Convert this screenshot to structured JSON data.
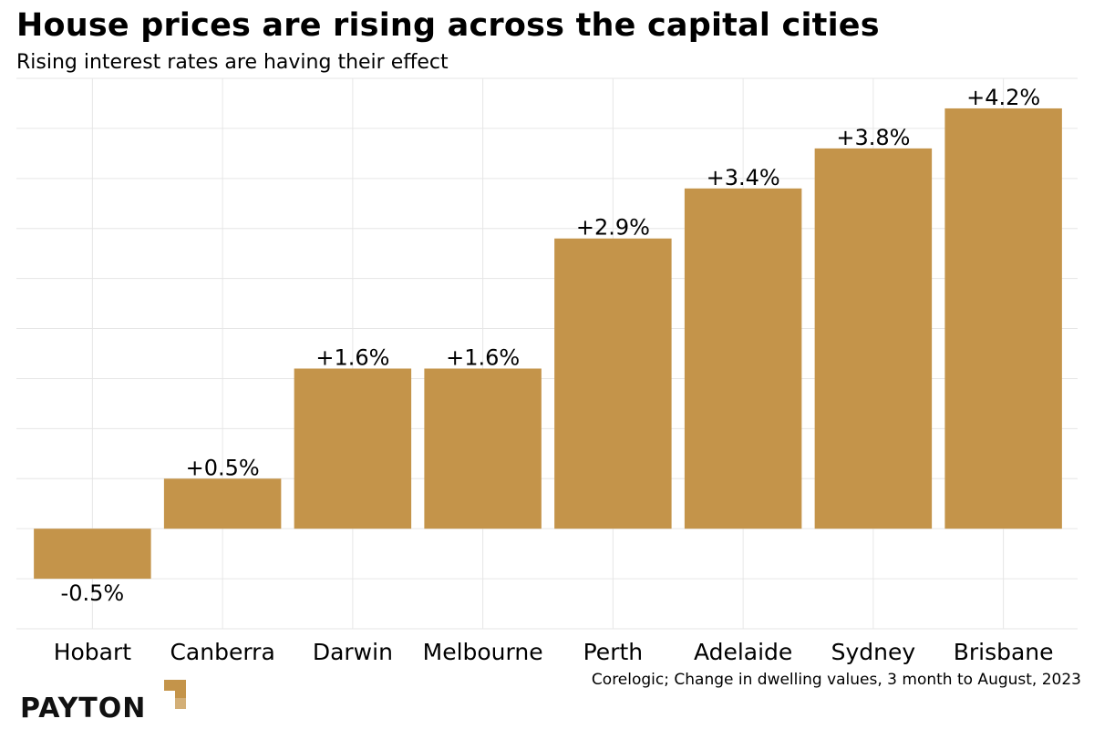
{
  "header": {
    "title": "House prices are rising across the capital cities",
    "subtitle": "Rising interest rates are having their effect"
  },
  "footer": {
    "source": "Corelogic; Change in dwelling values, 3 month to August, 2023",
    "brand": "PAYTON"
  },
  "colors": {
    "bar": "#c4944a",
    "grid": "#e6e6e6",
    "text": "#000000"
  },
  "chart_data": {
    "type": "bar",
    "title": "House prices are rising across the capital cities",
    "subtitle": "Rising interest rates are having their effect",
    "xlabel": "",
    "ylabel": "",
    "categories": [
      "Hobart",
      "Canberra",
      "Darwin",
      "Melbourne",
      "Perth",
      "Adelaide",
      "Sydney",
      "Brisbane"
    ],
    "values": [
      -0.5,
      0.5,
      1.6,
      1.6,
      2.9,
      3.4,
      3.8,
      4.2
    ],
    "data_labels": [
      "-0.5%",
      "+0.5%",
      "+1.6%",
      "+1.6%",
      "+2.9%",
      "+3.4%",
      "+3.8%",
      "+4.2%"
    ],
    "ylim": [
      -1.0,
      4.5
    ],
    "grid": true,
    "legend": "none"
  }
}
